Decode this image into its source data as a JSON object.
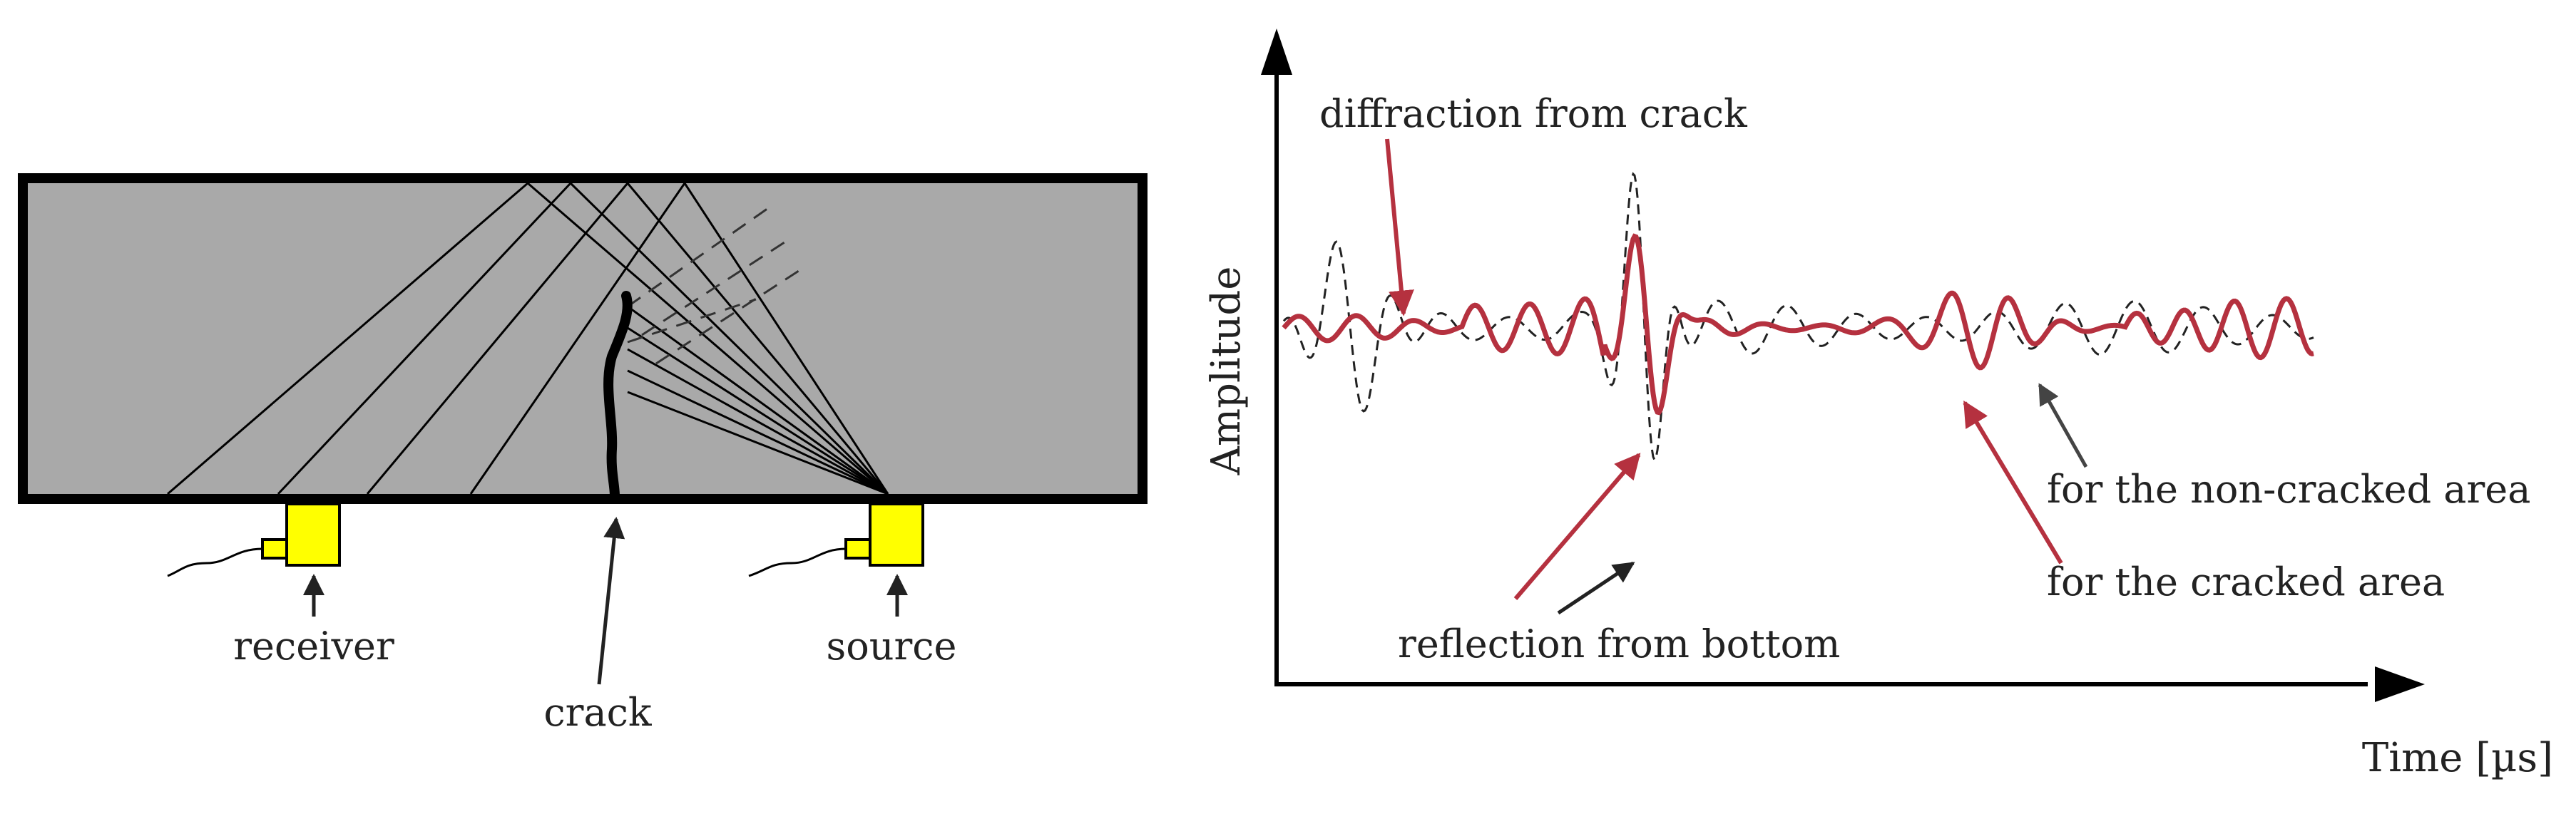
{
  "colors": {
    "slab_fill": "#a9a9a9",
    "slab_stroke": "#000000",
    "transducer_fill": "#ffff00",
    "cracked_signal": "#b5313f",
    "noncracked_signal": "#222222",
    "background": "#ffffff"
  },
  "left_diagram": {
    "labels": {
      "receiver": "receiver",
      "crack": "crack",
      "source": "source"
    }
  },
  "right_plot": {
    "axes": {
      "y_label": "Amplitude",
      "x_label": "Time [µs]"
    },
    "annotations": {
      "diffraction": "diffraction from crack",
      "reflection": "reflection from bottom",
      "non_cracked": "for the non-cracked area",
      "cracked": "for the cracked area"
    }
  }
}
